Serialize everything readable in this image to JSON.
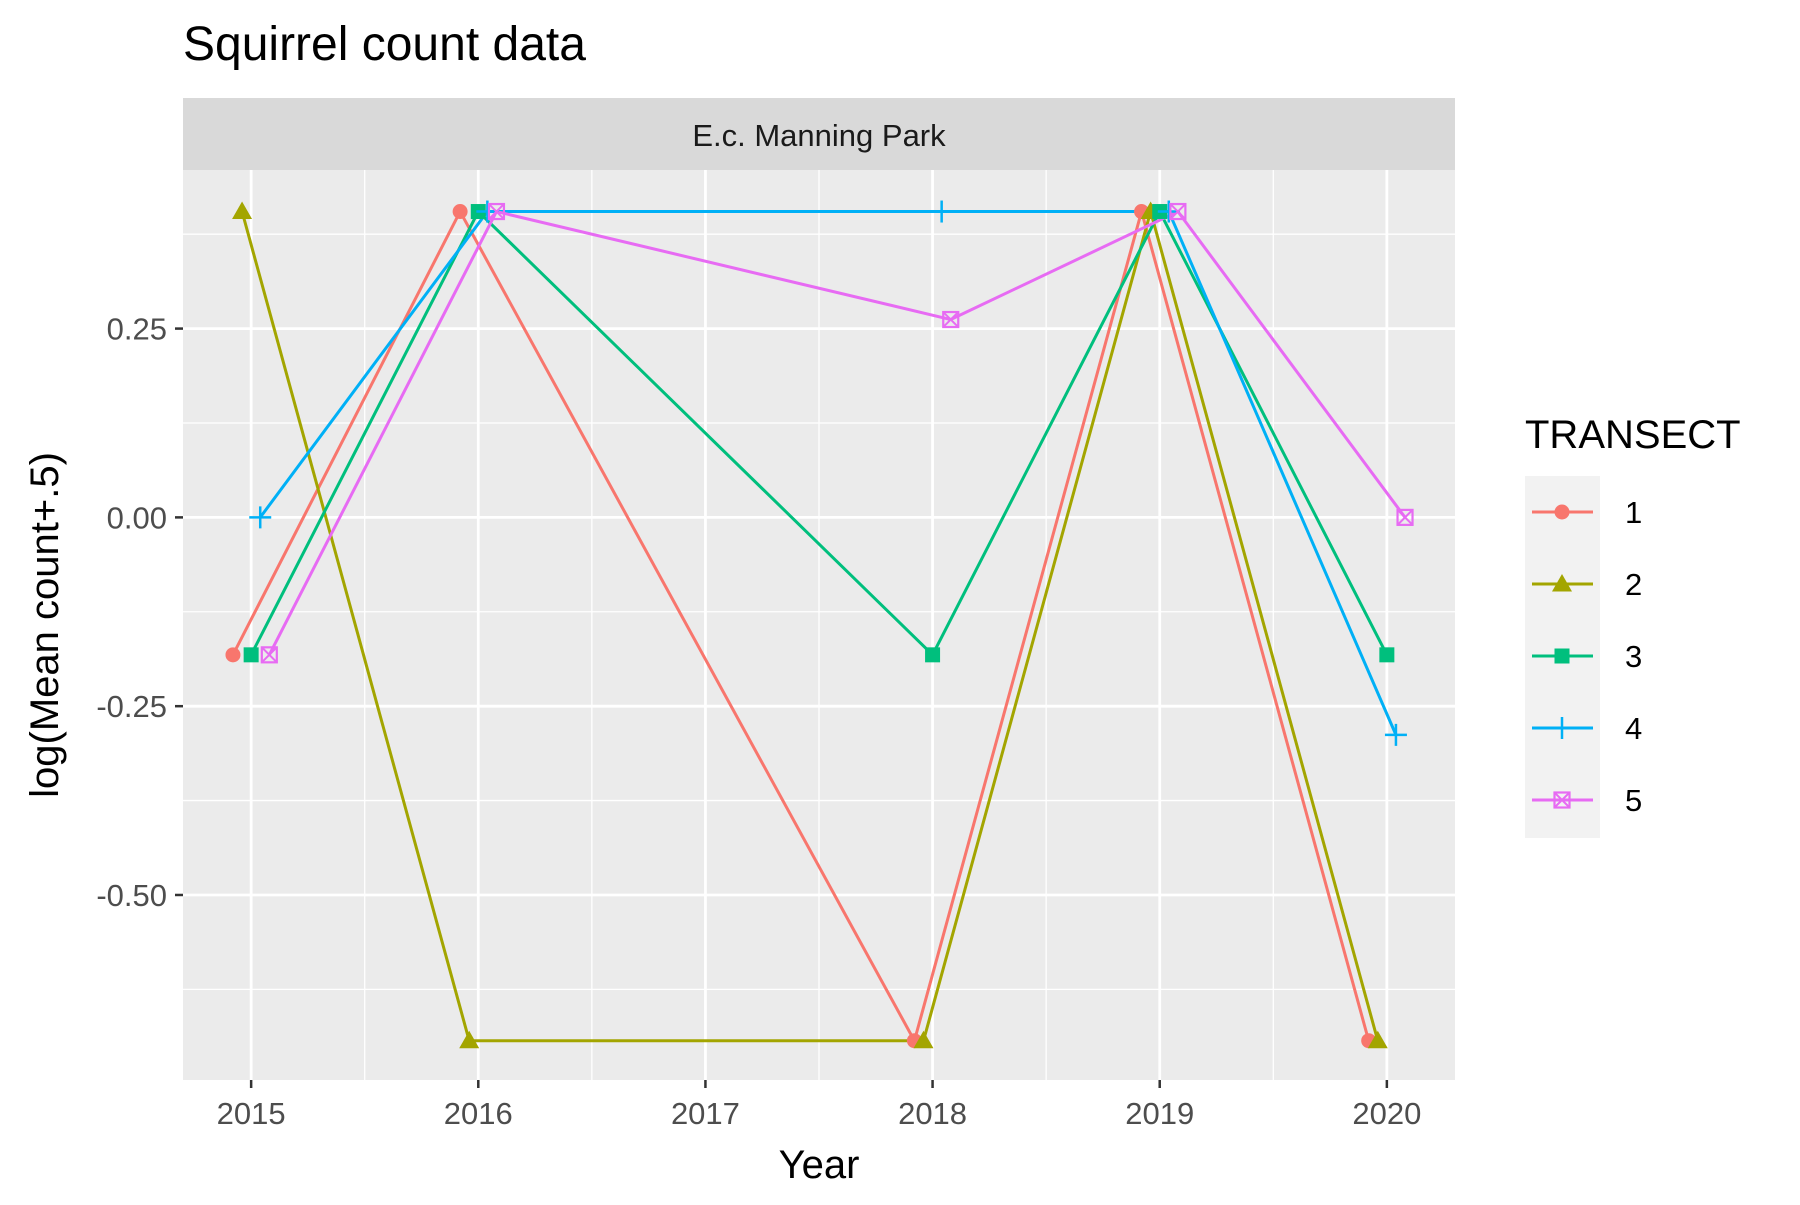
{
  "chart_data": {
    "type": "line",
    "title": "Squirrel count data",
    "facet_label": "E.c. Manning Park",
    "xlabel": "Year",
    "ylabel": "log(Mean count+.5)",
    "x_ticks": [
      2015,
      2016,
      2017,
      2018,
      2019,
      2020
    ],
    "x_tick_labels": [
      "2015",
      "2016",
      "2017",
      "2018",
      "2019",
      "2020"
    ],
    "y_ticks": [
      0.25,
      0.0,
      -0.25,
      -0.5
    ],
    "y_tick_labels": [
      "0.25",
      "0.00",
      "-0.25",
      "-0.50"
    ],
    "xlim": [
      2014.7,
      2020.3
    ],
    "ylim": [
      -0.745,
      0.46
    ],
    "grid": true,
    "legend_title": "TRANSECT",
    "legend_position": "right",
    "series": [
      {
        "name": "1",
        "color": "#F8766D",
        "shape": "circle",
        "x": [
          2015,
          2016,
          2018,
          2019,
          2020
        ],
        "y": [
          -0.182,
          0.405,
          -0.693,
          0.405,
          -0.693
        ]
      },
      {
        "name": "2",
        "color": "#A3A500",
        "shape": "triangle",
        "x": [
          2015,
          2016,
          2018,
          2019,
          2020
        ],
        "y": [
          0.405,
          -0.693,
          -0.693,
          0.405,
          -0.693
        ]
      },
      {
        "name": "3",
        "color": "#00BF7D",
        "shape": "square",
        "x": [
          2015,
          2016,
          2018,
          2019,
          2020
        ],
        "y": [
          -0.182,
          0.405,
          -0.182,
          0.405,
          -0.182
        ]
      },
      {
        "name": "4",
        "color": "#00B0F6",
        "shape": "plus",
        "x": [
          2015,
          2016,
          2018,
          2019,
          2020
        ],
        "y": [
          0.0,
          0.405,
          0.405,
          0.405,
          -0.288
        ]
      },
      {
        "name": "5",
        "color": "#E76BF3",
        "shape": "square-cross",
        "x": [
          2015,
          2016,
          2018,
          2019,
          2020
        ],
        "y": [
          -0.182,
          0.405,
          0.262,
          0.405,
          0.0
        ]
      }
    ]
  }
}
